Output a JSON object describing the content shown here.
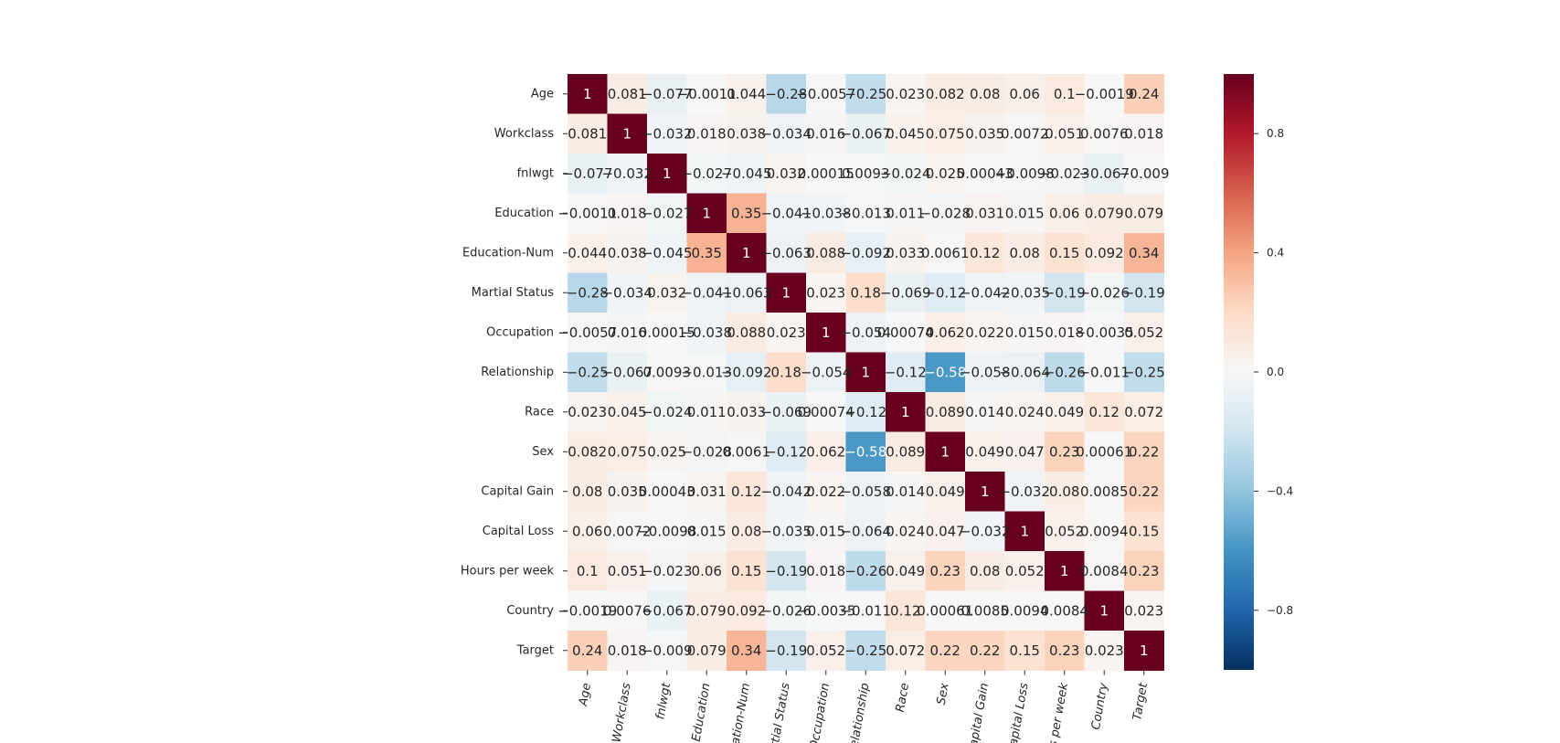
{
  "chart_data": {
    "type": "heatmap",
    "title": "",
    "xlabel": "",
    "ylabel": "",
    "colormap": "RdBu_r",
    "vmin": -1,
    "vmax": 1,
    "x_categories": [
      "Age",
      "Workclass",
      "fnlwgt",
      "Education",
      "Education-Num",
      "Martial Status",
      "Occupation",
      "Relationship",
      "Race",
      "Sex",
      "Capital Gain",
      "Capital Loss",
      "Hours per week",
      "Country",
      "Target"
    ],
    "y_categories": [
      "Age",
      "Workclass",
      "fnlwgt",
      "Education",
      "Education-Num",
      "Martial Status",
      "Occupation",
      "Relationship",
      "Race",
      "Sex",
      "Capital Gain",
      "Capital Loss",
      "Hours per week",
      "Country",
      "Target"
    ],
    "values": [
      [
        1,
        0.081,
        -0.077,
        -0.0011,
        0.044,
        -0.28,
        -0.0057,
        -0.25,
        0.023,
        0.082,
        0.08,
        0.06,
        0.1,
        -0.0019,
        0.24
      ],
      [
        0.081,
        1,
        -0.032,
        0.018,
        0.038,
        -0.034,
        0.016,
        -0.067,
        0.045,
        0.075,
        0.035,
        0.0072,
        0.051,
        0.0076,
        0.018
      ],
      [
        -0.077,
        -0.032,
        1,
        -0.027,
        -0.045,
        0.032,
        0.00015,
        0.0093,
        -0.024,
        0.025,
        0.00043,
        -0.0098,
        -0.023,
        -0.067,
        -0.009
      ],
      [
        -0.0011,
        0.018,
        -0.027,
        1,
        0.35,
        -0.041,
        -0.038,
        -0.013,
        0.011,
        -0.028,
        0.031,
        0.015,
        0.06,
        0.079,
        0.079
      ],
      [
        0.044,
        0.038,
        -0.045,
        0.35,
        1,
        -0.063,
        0.088,
        -0.092,
        0.033,
        0.0061,
        0.12,
        0.08,
        0.15,
        0.092,
        0.34
      ],
      [
        -0.28,
        -0.034,
        0.032,
        -0.041,
        -0.063,
        1,
        0.023,
        0.18,
        -0.069,
        -0.12,
        -0.042,
        -0.035,
        -0.19,
        -0.026,
        -0.19
      ],
      [
        -0.0057,
        0.016,
        0.00015,
        -0.038,
        0.088,
        0.023,
        1,
        -0.054,
        0.00074,
        0.062,
        0.022,
        0.015,
        0.018,
        -0.0035,
        0.052
      ],
      [
        -0.25,
        -0.067,
        0.0093,
        -0.013,
        -0.092,
        0.18,
        -0.054,
        1,
        -0.12,
        -0.58,
        -0.058,
        -0.064,
        -0.26,
        -0.011,
        -0.25
      ],
      [
        0.023,
        0.045,
        -0.024,
        0.011,
        0.033,
        -0.069,
        0.00074,
        -0.12,
        1,
        0.089,
        0.014,
        0.024,
        0.049,
        0.12,
        0.072
      ],
      [
        0.082,
        0.075,
        0.025,
        -0.028,
        0.0061,
        -0.12,
        0.062,
        -0.58,
        0.089,
        1,
        0.049,
        0.047,
        0.23,
        0.00061,
        0.22
      ],
      [
        0.08,
        0.035,
        0.00043,
        0.031,
        0.12,
        -0.042,
        0.022,
        -0.058,
        0.014,
        0.049,
        1,
        -0.032,
        0.08,
        0.0085,
        0.22
      ],
      [
        0.06,
        0.0072,
        -0.0098,
        0.015,
        0.08,
        -0.035,
        0.015,
        -0.064,
        0.024,
        0.047,
        -0.032,
        1,
        0.052,
        0.0094,
        0.15
      ],
      [
        0.1,
        0.051,
        -0.023,
        0.06,
        0.15,
        -0.19,
        0.018,
        -0.26,
        0.049,
        0.23,
        0.08,
        0.052,
        1,
        0.0084,
        0.23
      ],
      [
        -0.0019,
        0.0076,
        -0.067,
        0.079,
        0.092,
        -0.026,
        -0.0035,
        -0.011,
        0.12,
        0.00061,
        0.0085,
        0.0094,
        0.0084,
        1,
        0.023
      ],
      [
        0.24,
        0.018,
        -0.009,
        0.079,
        0.34,
        -0.19,
        0.052,
        -0.25,
        0.072,
        0.22,
        0.22,
        0.15,
        0.23,
        0.023,
        1
      ]
    ],
    "colorbar": {
      "ticks": [
        -0.8,
        -0.4,
        0.0,
        0.4,
        0.8
      ],
      "tick_labels": [
        "−0.8",
        "−0.4",
        "0.0",
        "0.4",
        "0.8"
      ]
    },
    "annotations_shown": true,
    "grid": false
  }
}
